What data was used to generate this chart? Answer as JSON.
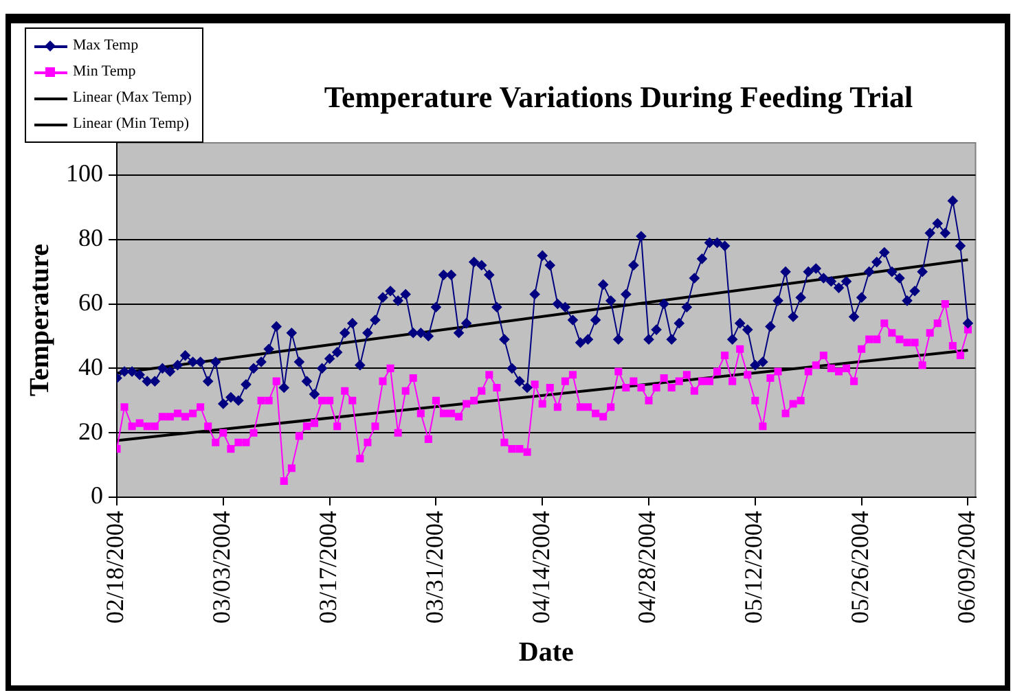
{
  "chart_data": {
    "type": "line",
    "title": "Temperature Variations During Feeding Trial",
    "xlabel": "Date",
    "ylabel": "Temperature",
    "x": [
      "2004-02-18",
      "2004-02-19",
      "2004-02-20",
      "2004-02-21",
      "2004-02-22",
      "2004-02-23",
      "2004-02-24",
      "2004-02-25",
      "2004-02-26",
      "2004-02-27",
      "2004-02-28",
      "2004-02-29",
      "2004-03-01",
      "2004-03-02",
      "2004-03-03",
      "2004-03-04",
      "2004-03-05",
      "2004-03-06",
      "2004-03-07",
      "2004-03-08",
      "2004-03-09",
      "2004-03-10",
      "2004-03-11",
      "2004-03-12",
      "2004-03-13",
      "2004-03-14",
      "2004-03-15",
      "2004-03-16",
      "2004-03-17",
      "2004-03-18",
      "2004-03-19",
      "2004-03-20",
      "2004-03-21",
      "2004-03-22",
      "2004-03-23",
      "2004-03-24",
      "2004-03-25",
      "2004-03-26",
      "2004-03-27",
      "2004-03-28",
      "2004-03-29",
      "2004-03-30",
      "2004-03-31",
      "2004-04-01",
      "2004-04-02",
      "2004-04-03",
      "2004-04-04",
      "2004-04-05",
      "2004-04-06",
      "2004-04-07",
      "2004-04-08",
      "2004-04-09",
      "2004-04-10",
      "2004-04-11",
      "2004-04-12",
      "2004-04-13",
      "2004-04-14",
      "2004-04-15",
      "2004-04-16",
      "2004-04-17",
      "2004-04-18",
      "2004-04-19",
      "2004-04-20",
      "2004-04-21",
      "2004-04-22",
      "2004-04-23",
      "2004-04-24",
      "2004-04-25",
      "2004-04-26",
      "2004-04-27",
      "2004-04-28",
      "2004-04-29",
      "2004-04-30",
      "2004-05-01",
      "2004-05-02",
      "2004-05-03",
      "2004-05-04",
      "2004-05-05",
      "2004-05-06",
      "2004-05-07",
      "2004-05-08",
      "2004-05-09",
      "2004-05-10",
      "2004-05-11",
      "2004-05-12",
      "2004-05-13",
      "2004-05-14",
      "2004-05-15",
      "2004-05-16",
      "2004-05-17",
      "2004-05-18",
      "2004-05-19",
      "2004-05-20",
      "2004-05-21",
      "2004-05-22",
      "2004-05-23",
      "2004-05-24",
      "2004-05-25",
      "2004-05-26",
      "2004-05-27",
      "2004-05-28",
      "2004-05-29",
      "2004-05-30",
      "2004-05-31",
      "2004-06-01",
      "2004-06-02",
      "2004-06-03",
      "2004-06-04",
      "2004-06-05",
      "2004-06-06",
      "2004-06-07",
      "2004-06-08",
      "2004-06-09"
    ],
    "series": [
      {
        "name": "Max Temp",
        "color": "#000080",
        "marker": "diamond",
        "values": [
          37,
          39,
          39,
          38,
          36,
          36,
          40,
          39,
          41,
          44,
          42,
          42,
          36,
          42,
          29,
          31,
          30,
          35,
          40,
          42,
          46,
          53,
          34,
          51,
          42,
          36,
          32,
          40,
          43,
          45,
          51,
          54,
          41,
          51,
          55,
          62,
          64,
          61,
          63,
          51,
          51,
          50,
          59,
          69,
          69,
          51,
          54,
          73,
          72,
          69,
          59,
          49,
          40,
          36,
          34,
          63,
          75,
          72,
          60,
          59,
          55,
          48,
          49,
          55,
          66,
          61,
          49,
          63,
          72,
          81,
          49,
          52,
          60,
          49,
          54,
          59,
          68,
          74,
          79,
          79,
          78,
          49,
          54,
          52,
          41,
          42,
          53,
          61,
          70,
          56,
          62,
          70,
          71,
          68,
          67,
          65,
          67,
          56,
          62,
          70,
          73,
          76,
          70,
          68,
          61,
          64,
          70,
          82,
          85,
          82,
          92,
          78,
          54
        ]
      },
      {
        "name": "Min Temp",
        "color": "#ff00ff",
        "marker": "square",
        "values": [
          15,
          28,
          22,
          23,
          22,
          22,
          25,
          25,
          26,
          25,
          26,
          28,
          22,
          17,
          20,
          15,
          17,
          17,
          20,
          30,
          30,
          36,
          5,
          9,
          19,
          22,
          23,
          30,
          30,
          22,
          33,
          30,
          12,
          17,
          22,
          36,
          40,
          20,
          33,
          37,
          26,
          18,
          30,
          26,
          26,
          25,
          29,
          30,
          33,
          38,
          34,
          17,
          15,
          15,
          14,
          35,
          29,
          34,
          28,
          36,
          38,
          28,
          28,
          26,
          25,
          28,
          39,
          34,
          36,
          34,
          30,
          34,
          37,
          34,
          36,
          38,
          33,
          36,
          36,
          39,
          44,
          36,
          46,
          38,
          30,
          22,
          37,
          39,
          26,
          29,
          30,
          39,
          41,
          44,
          40,
          39,
          40,
          36,
          46,
          49,
          49,
          54,
          51,
          49,
          48,
          48,
          41,
          51,
          54,
          60,
          47,
          44,
          52
        ]
      },
      {
        "name": "Linear (Max Temp)",
        "color": "#000000",
        "marker": "none",
        "x": [
          "2004-02-18",
          "2004-06-09"
        ],
        "values": [
          38.5,
          73.7
        ]
      },
      {
        "name": "Linear (Min Temp)",
        "color": "#000000",
        "marker": "none",
        "x": [
          "2004-02-18",
          "2004-06-09"
        ],
        "values": [
          17.6,
          45.6
        ]
      }
    ],
    "xlim": [
      "2004-02-18",
      "2004-06-10"
    ],
    "xticks": [
      {
        "value": "2004-02-18",
        "label": "02/18/2004"
      },
      {
        "value": "2004-03-03",
        "label": "03/03/2004"
      },
      {
        "value": "2004-03-17",
        "label": "03/17/2004"
      },
      {
        "value": "2004-03-31",
        "label": "03/31/2004"
      },
      {
        "value": "2004-04-14",
        "label": "04/14/2004"
      },
      {
        "value": "2004-04-28",
        "label": "04/28/2004"
      },
      {
        "value": "2004-05-12",
        "label": "05/12/2004"
      },
      {
        "value": "2004-05-26",
        "label": "05/26/2004"
      },
      {
        "value": "2004-06-09",
        "label": "06/09/2004"
      }
    ],
    "ylim": [
      0,
      110
    ],
    "yticks": [
      0,
      20,
      40,
      60,
      80,
      100
    ],
    "grid": "y",
    "legend": "top left"
  }
}
